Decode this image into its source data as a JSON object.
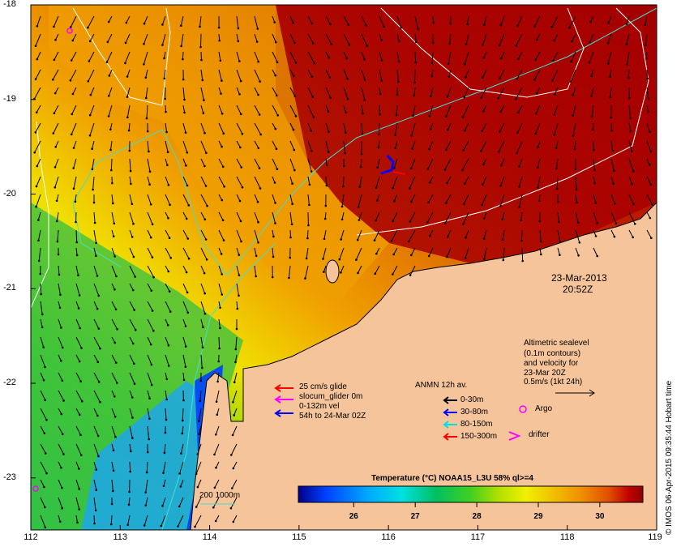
{
  "map": {
    "type": "sea-surface-temperature-map",
    "x_ticks": [
      "112",
      "113",
      "114",
      "115",
      "116",
      "117",
      "118",
      "119"
    ],
    "y_ticks": [
      "-18",
      "-19",
      "-20",
      "-21",
      "-22",
      "-23"
    ],
    "xlim": [
      112,
      119
    ],
    "ylim": [
      -23.55,
      -18
    ],
    "colors": {
      "land": "#f6c49a",
      "sst_scale": [
        "#00008c",
        "#0040ff",
        "#00a8ff",
        "#00e0e0",
        "#00c060",
        "#40d020",
        "#b0e000",
        "#f0f000",
        "#f0c000",
        "#f09000",
        "#e05000",
        "#c00000",
        "#900000"
      ]
    }
  },
  "timestamp": {
    "date": "23-Mar-2013",
    "time": "20:52Z"
  },
  "altimetry": {
    "line1": "Altimetric sealevel",
    "line2": "(0.1m contours)",
    "line3": "and velocity for",
    "line4": "23-Mar 20Z",
    "line5": "0.5m/s (1kt 24h)"
  },
  "glider_legend": {
    "line1": "25 cm/s glide",
    "line2": "slocum_glider 0m",
    "line3": "0-132m vel",
    "line4": "54h to 24-Mar 02Z",
    "colors": [
      "#ff0000",
      "#ff00ff",
      "#ff00ff",
      "#0000ff"
    ]
  },
  "anmn_legend": {
    "title": "ANMN 12h av.",
    "items": [
      {
        "label": "0-30m",
        "color": "#000000"
      },
      {
        "label": "30-80m",
        "color": "#0000ff"
      },
      {
        "label": "80-150m",
        "color": "#00e0e0"
      },
      {
        "label": "150-300m",
        "color": "#ff0000"
      }
    ]
  },
  "symbols": {
    "argo": "Argo",
    "drifter": "drifter"
  },
  "isobath_label": "200  1000m",
  "colorbar": {
    "title": "Temperature (°C) NOAA15_L3U 58% ql>=4",
    "ticks": [
      "26",
      "27",
      "28",
      "29",
      "30"
    ],
    "tick_values": [
      26,
      27,
      28,
      29,
      30
    ],
    "range": [
      25.1,
      30.7
    ]
  },
  "credit": "© IMOS 06-Apr-2015 09:35:44 Hobart time"
}
